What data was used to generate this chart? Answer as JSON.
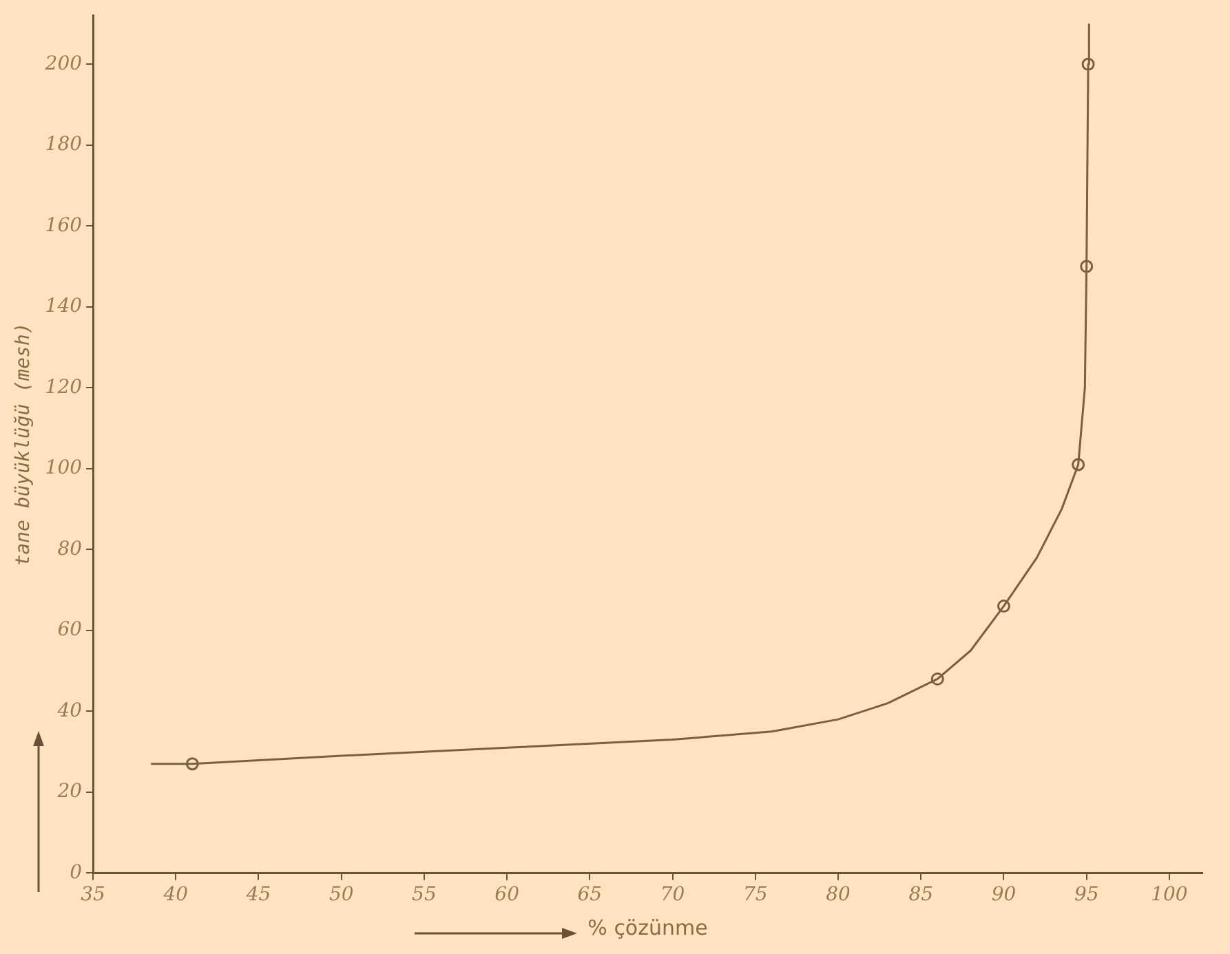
{
  "chart_data": {
    "type": "scatter",
    "xlabel": "% çözünme",
    "ylabel": "tane büyüklüğü (mesh)",
    "xlim": [
      35,
      102
    ],
    "xticks": [
      35,
      40,
      45,
      50,
      55,
      60,
      65,
      70,
      75,
      80,
      85,
      90,
      95,
      100
    ],
    "ylim": [
      0,
      212
    ],
    "yticks": [
      0,
      20,
      40,
      60,
      80,
      100,
      120,
      140,
      160,
      180,
      200
    ],
    "grid": false,
    "legend": false,
    "series": [
      {
        "type": "line",
        "color": "#7a6040",
        "marker": "none",
        "line_style": "solid",
        "x": [
          38.5,
          41,
          50,
          60,
          70,
          76,
          80,
          83,
          86,
          88,
          90,
          92,
          93.5,
          94.5,
          94.9,
          95,
          95.1,
          95.15
        ],
        "values": [
          27,
          27,
          29,
          31,
          33,
          35,
          38,
          42,
          48,
          55,
          66,
          78,
          90,
          101,
          120,
          150,
          200,
          210
        ]
      },
      {
        "type": "scatter",
        "color": "#7a6040",
        "marker": "circle",
        "x": [
          41,
          86,
          90,
          94.5,
          95,
          95.1
        ],
        "values": [
          27,
          48,
          66,
          101,
          150,
          200
        ]
      }
    ]
  }
}
